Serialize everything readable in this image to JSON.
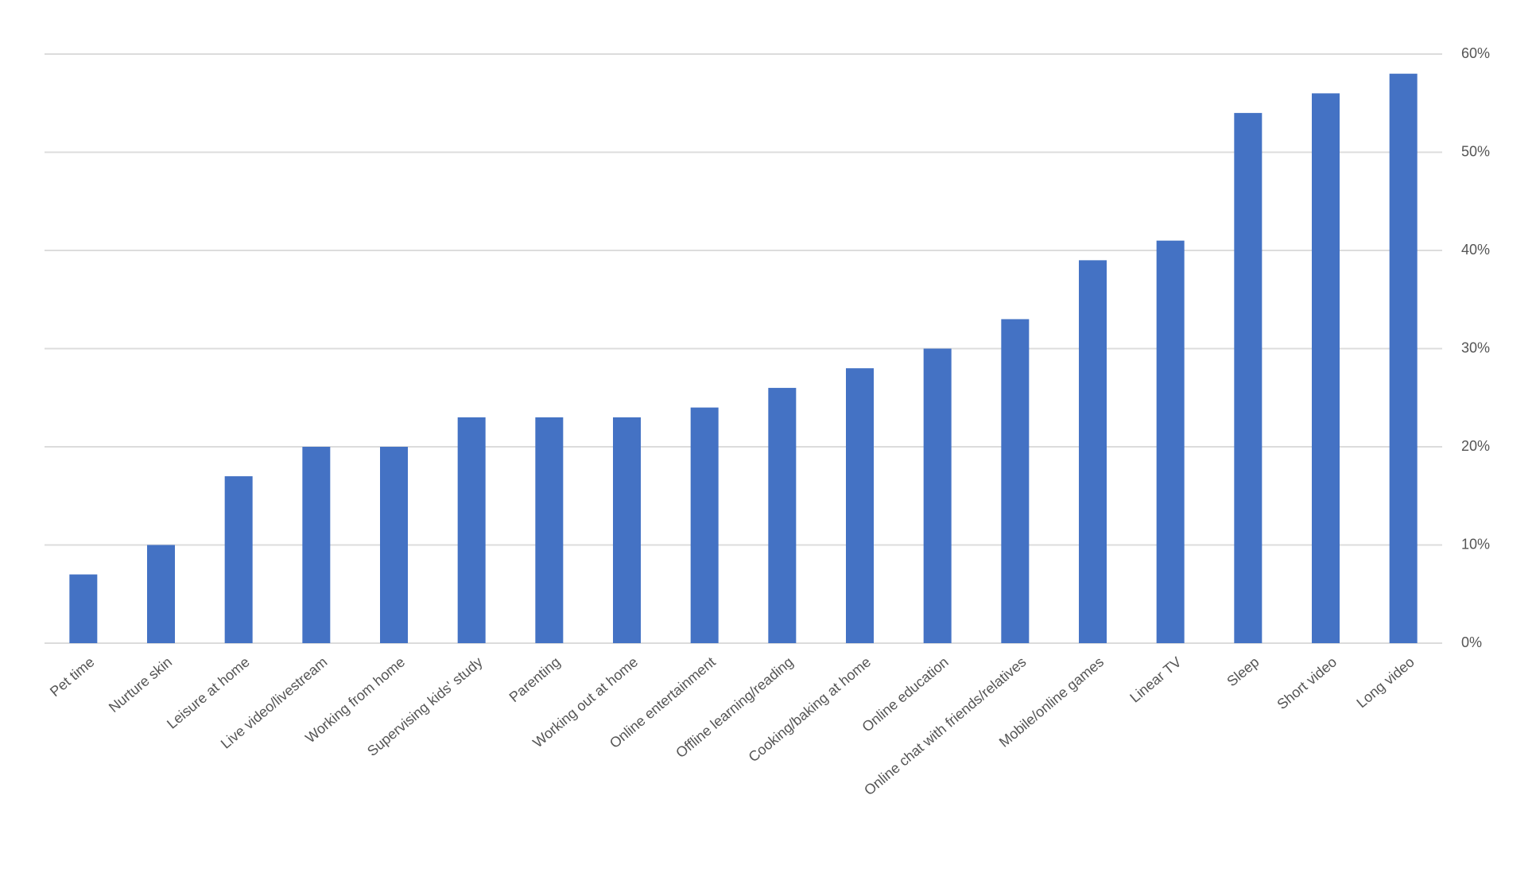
{
  "chart_data": {
    "type": "bar",
    "categories": [
      "Pet time",
      "Nurture skin",
      "Leisure at home",
      "Live video/livestream",
      "Working from home",
      "Supervising kids' study",
      "Parenting",
      "Working out at home",
      "Online entertainment",
      "Offline learning/reading",
      "Cooking/baking at home",
      "Online education",
      "Online chat with friends/relatives",
      "Mobile/online games",
      "Linear TV",
      "Sleep",
      "Short video",
      "Long video"
    ],
    "values": [
      7,
      10,
      17,
      20,
      20,
      23,
      23,
      23,
      24,
      26,
      28,
      30,
      33,
      39,
      41,
      54,
      56,
      58
    ],
    "color": "#4472c4",
    "ylim": [
      0,
      60
    ],
    "yticks": [
      {
        "value": 0,
        "label": "0%"
      },
      {
        "value": 10,
        "label": "10%"
      },
      {
        "value": 20,
        "label": "20%"
      },
      {
        "value": 30,
        "label": "30%"
      },
      {
        "value": 40,
        "label": "40%"
      },
      {
        "value": 50,
        "label": "50%"
      },
      {
        "value": 60,
        "label": "60%"
      }
    ],
    "grid": true
  }
}
